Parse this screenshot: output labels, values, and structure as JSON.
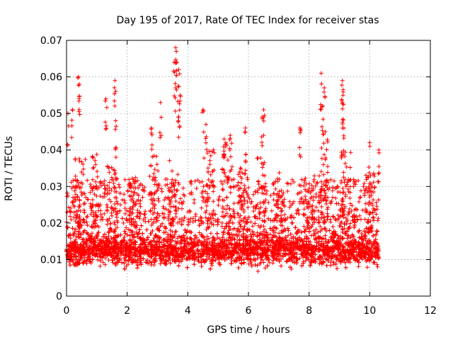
{
  "chart_data": {
    "type": "scatter",
    "title": "Day 195 of 2017, Rate Of TEC Index for receiver stas",
    "xlabel": "GPS time / hours",
    "ylabel": "ROTI / TECUs",
    "xlim": [
      0,
      12
    ],
    "ylim": [
      0,
      0.07
    ],
    "xticks": [
      0,
      2,
      4,
      6,
      8,
      10,
      12
    ],
    "xtick_labels": [
      "0",
      "2",
      "4",
      "6",
      "8",
      "10",
      "12"
    ],
    "yticks": [
      0,
      0.01,
      0.02,
      0.03,
      0.04,
      0.05,
      0.06,
      0.07
    ],
    "ytick_labels": [
      "0",
      "0.01",
      "0.02",
      "0.03",
      "0.04",
      "0.05",
      "0.06",
      "0.07"
    ],
    "grid": true,
    "marker": "+",
    "marker_color": "#ff0000",
    "data_x_range": [
      0,
      10.3
    ],
    "typical_range": [
      0.005,
      0.03
    ],
    "peaks": [
      {
        "x": 0.05,
        "y": 0.05
      },
      {
        "x": 0.2,
        "y": 0.051
      },
      {
        "x": 0.4,
        "y": 0.06
      },
      {
        "x": 0.42,
        "y": 0.058
      },
      {
        "x": 1.3,
        "y": 0.054
      },
      {
        "x": 1.6,
        "y": 0.059
      },
      {
        "x": 1.62,
        "y": 0.048
      },
      {
        "x": 2.8,
        "y": 0.046
      },
      {
        "x": 3.1,
        "y": 0.053
      },
      {
        "x": 3.6,
        "y": 0.068
      },
      {
        "x": 3.62,
        "y": 0.067
      },
      {
        "x": 3.55,
        "y": 0.064
      },
      {
        "x": 3.7,
        "y": 0.062
      },
      {
        "x": 3.6,
        "y": 0.057
      },
      {
        "x": 3.75,
        "y": 0.055
      },
      {
        "x": 3.7,
        "y": 0.049
      },
      {
        "x": 4.5,
        "y": 0.051
      },
      {
        "x": 4.6,
        "y": 0.047
      },
      {
        "x": 5.2,
        "y": 0.043
      },
      {
        "x": 5.4,
        "y": 0.044
      },
      {
        "x": 5.9,
        "y": 0.046
      },
      {
        "x": 6.5,
        "y": 0.051
      },
      {
        "x": 6.45,
        "y": 0.049
      },
      {
        "x": 7.7,
        "y": 0.046
      },
      {
        "x": 8.4,
        "y": 0.061
      },
      {
        "x": 8.5,
        "y": 0.057
      },
      {
        "x": 8.45,
        "y": 0.052
      },
      {
        "x": 9.1,
        "y": 0.059
      },
      {
        "x": 9.12,
        "y": 0.055
      },
      {
        "x": 9.1,
        "y": 0.053
      },
      {
        "x": 9.15,
        "y": 0.046
      },
      {
        "x": 10.0,
        "y": 0.042
      },
      {
        "x": 10.3,
        "y": 0.04
      }
    ],
    "bursts": [
      {
        "x": 0.45,
        "ymax": 0.038
      },
      {
        "x": 1.0,
        "ymax": 0.039
      },
      {
        "x": 1.5,
        "ymax": 0.036
      },
      {
        "x": 2.2,
        "ymax": 0.033
      },
      {
        "x": 2.9,
        "ymax": 0.04
      },
      {
        "x": 3.5,
        "ymax": 0.038
      },
      {
        "x": 4.7,
        "ymax": 0.041
      },
      {
        "x": 5.3,
        "ymax": 0.042
      },
      {
        "x": 5.8,
        "ymax": 0.036
      },
      {
        "x": 6.4,
        "ymax": 0.038
      },
      {
        "x": 7.0,
        "ymax": 0.034
      },
      {
        "x": 8.0,
        "ymax": 0.033
      },
      {
        "x": 8.45,
        "ymax": 0.045
      },
      {
        "x": 9.2,
        "ymax": 0.04
      },
      {
        "x": 10.0,
        "ymax": 0.034
      }
    ]
  }
}
